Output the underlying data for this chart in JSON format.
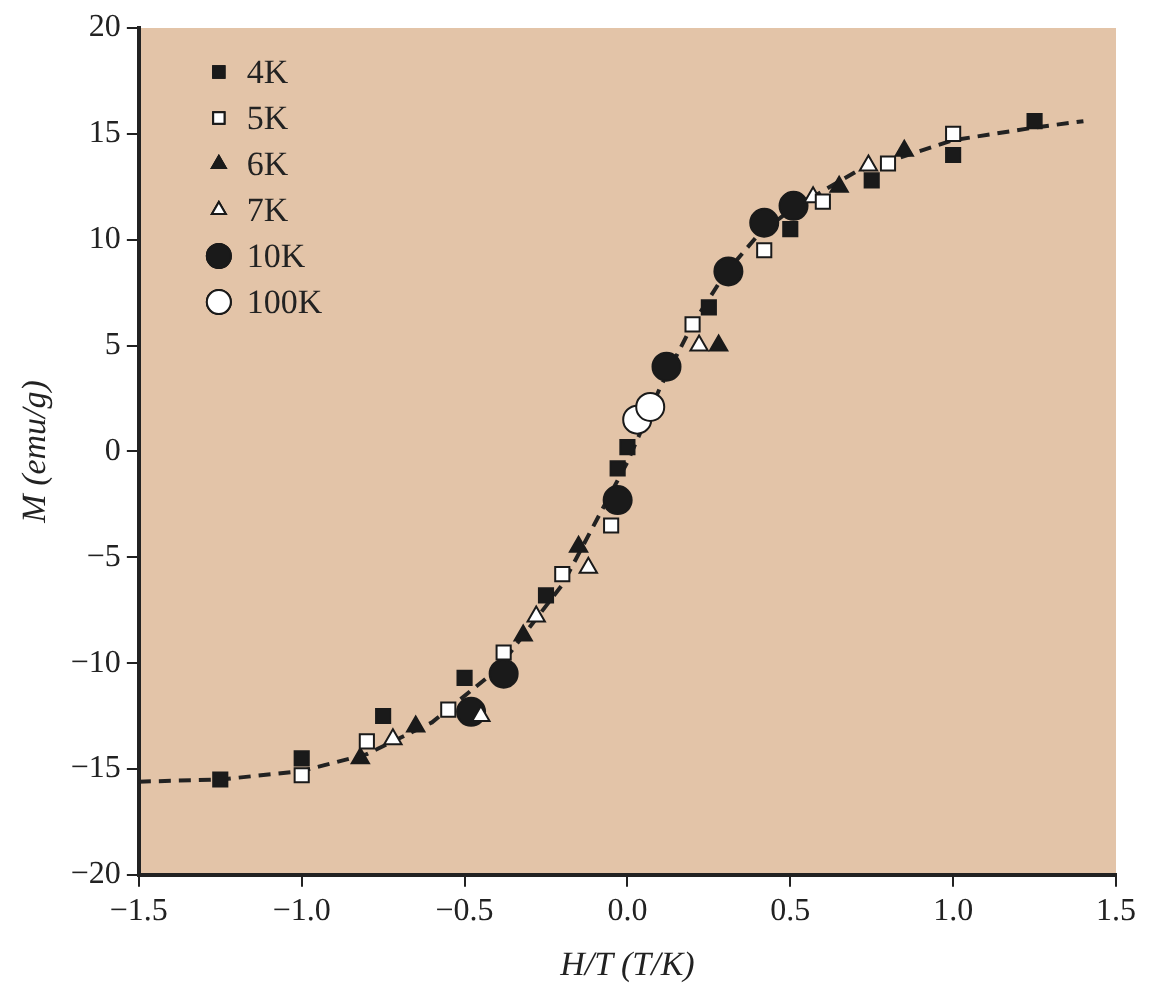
{
  "chart_data": {
    "type": "scatter",
    "xlabel": "H/T (T/K)",
    "ylabel": "M (emu/g)",
    "xlim": [
      -1.5,
      1.5
    ],
    "xticks": [
      {
        "value": -1.5,
        "label": "−1.5"
      },
      {
        "value": -1,
        "label": "−1.0"
      },
      {
        "value": -0.5,
        "label": "−0.5"
      },
      {
        "value": 0,
        "label": "0.0"
      },
      {
        "value": 0.5,
        "label": "0.5"
      },
      {
        "value": 1,
        "label": "1.0"
      },
      {
        "value": 1.5,
        "label": "1.5"
      }
    ],
    "ylim": [
      -20,
      20
    ],
    "yticks": [
      -20,
      -15,
      -10,
      -5,
      0,
      5,
      10,
      15,
      20
    ],
    "grid": false,
    "legend": "top left",
    "series": [
      {
        "name": "4K",
        "color": "#1a1a1a",
        "marker": "square",
        "x": [
          -1.25,
          -1,
          -0.75,
          -0.5,
          -0.25,
          -0.03,
          0,
          0.25,
          0.5,
          0.75,
          1,
          1.25
        ],
        "values": [
          -15.5,
          -14.5,
          -12.5,
          -10.7,
          -6.8,
          -0.8,
          0.2,
          6.8,
          10.5,
          12.8,
          14,
          15.6
        ]
      },
      {
        "name": "5K",
        "color": "#ffffff",
        "marker": "square",
        "x": [
          -1,
          -0.8,
          -0.55,
          -0.38,
          -0.2,
          -0.05,
          0.2,
          0.42,
          0.6,
          0.8,
          1
        ],
        "values": [
          -15.3,
          -13.7,
          -12.2,
          -9.5,
          -5.8,
          -3.5,
          6,
          9.5,
          11.8,
          13.6,
          15
        ]
      },
      {
        "name": "6K",
        "color": "#1a1a1a",
        "marker": "triangle",
        "x": [
          -0.82,
          -0.65,
          -0.32,
          -0.15,
          0.28,
          0.65,
          0.85
        ],
        "values": [
          -14.5,
          -13,
          -8.7,
          -4.5,
          5,
          12.5,
          14.2
        ]
      },
      {
        "name": "7K",
        "color": "#ffffff",
        "marker": "triangle",
        "x": [
          -0.72,
          -0.45,
          -0.28,
          -0.12,
          0.22,
          0.57,
          0.74
        ],
        "values": [
          -13.6,
          -12.5,
          -7.8,
          -5.5,
          5,
          12,
          13.5
        ]
      },
      {
        "name": "10K",
        "color": "#1a1a1a",
        "marker": "circle",
        "x": [
          -0.48,
          -0.38,
          -0.03,
          0.12,
          0.31,
          0.42,
          0.51
        ],
        "values": [
          -12.3,
          -10.5,
          -2.3,
          4,
          8.5,
          10.8,
          11.6
        ]
      },
      {
        "name": "100K",
        "color": "#ffffff",
        "marker": "circle",
        "x": [
          0.03,
          0.07
        ],
        "values": [
          1.5,
          2.1
        ]
      },
      {
        "type": "line",
        "color": "#222222",
        "line_style": "dashed",
        "marker": "none",
        "x": [
          -1.5,
          -1.25,
          -1,
          -0.8,
          -0.6,
          -0.4,
          -0.2,
          0,
          0.1,
          0.2,
          0.3,
          0.4,
          0.5,
          0.7,
          1,
          1.25,
          1.4
        ],
        "values": [
          -15.6,
          -15.5,
          -15.1,
          -14.3,
          -12.8,
          -10.3,
          -6.3,
          -0.5,
          3,
          6,
          8.4,
          10.2,
          11.4,
          13.2,
          14.7,
          15.3,
          15.6
        ]
      }
    ]
  }
}
